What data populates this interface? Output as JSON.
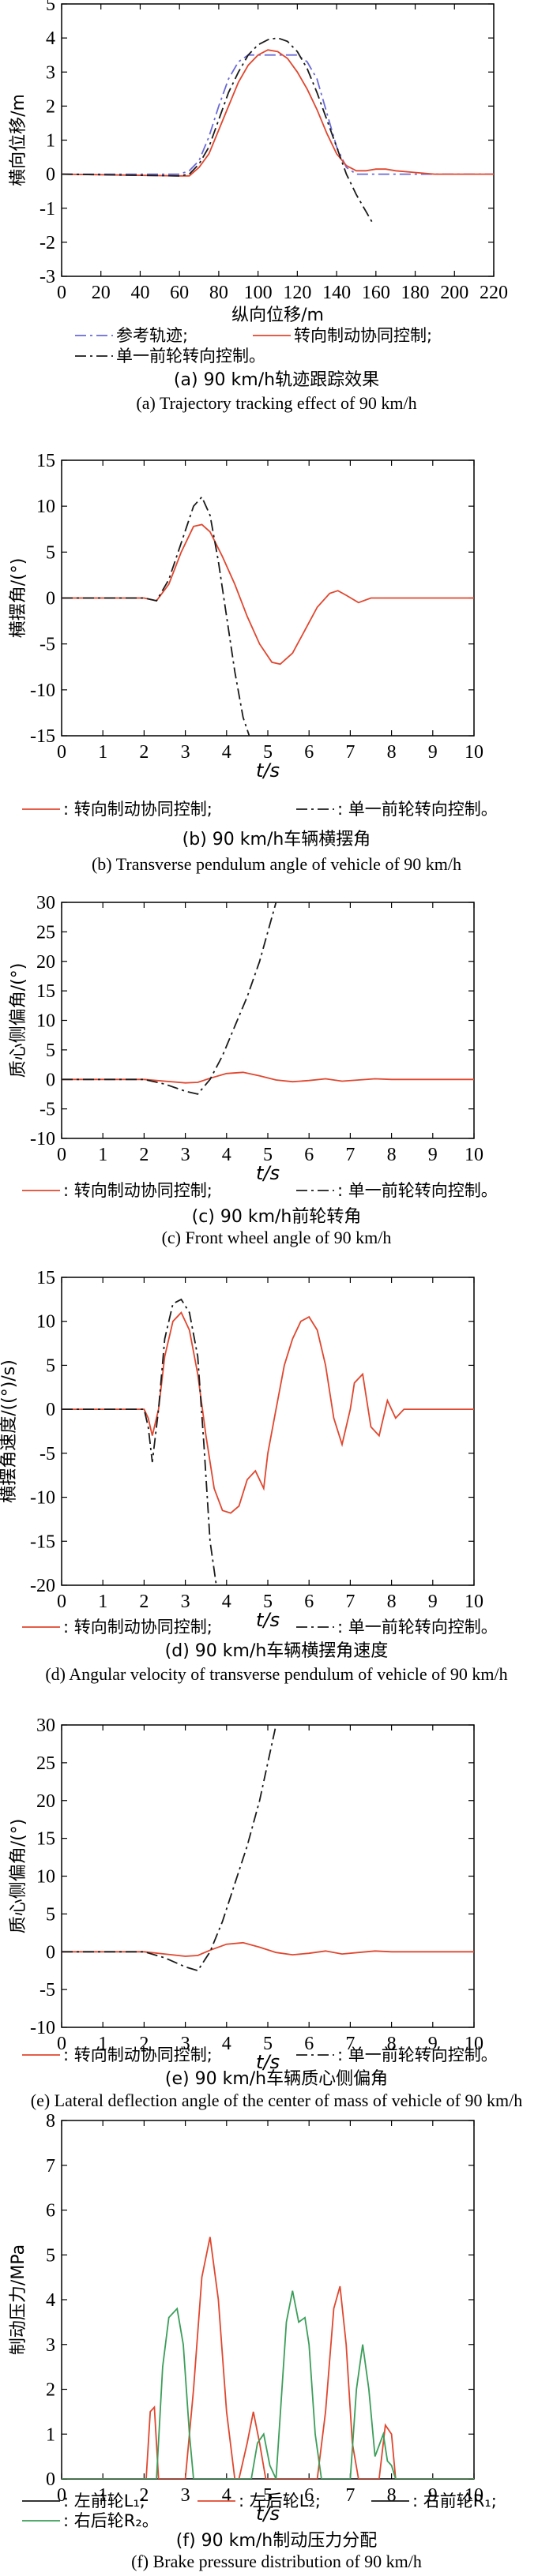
{
  "colors": {
    "red": "#e0472f",
    "black": "#1a1a1a",
    "green": "#3c9e5a",
    "grid": "#000000"
  },
  "chart_data": [
    {
      "id": "a",
      "type": "line",
      "ylabel": "横向位移/m",
      "xlabel": "纵向位移/m",
      "xlim": [
        0,
        220
      ],
      "ylim": [
        -3,
        5
      ],
      "xticks": [
        "0",
        "20",
        "40",
        "60",
        "80",
        "100",
        "120",
        "140",
        "160",
        "180",
        "200",
        "220"
      ],
      "yticks": [
        "-3",
        "-2",
        "-1",
        "0",
        "1",
        "2",
        "3",
        "4",
        "5"
      ],
      "legend": [
        {
          "label": "参考轨迹;",
          "style": "dashdot",
          "color": "#6a6ad8"
        },
        {
          "label": "转向制动协同控制;",
          "style": "solid",
          "color": "#e0472f"
        },
        {
          "label": "单一前轮转向控制。",
          "style": "dashdot",
          "color": "#1a1a1a"
        }
      ],
      "caption_cn": "(a) 90 km/h轨迹跟踪效果",
      "caption_en": "(a) Trajectory tracking effect of 90 km/h",
      "series": [
        {
          "name": "参考轨迹",
          "style": "dashdot",
          "color": "#6a6ad8",
          "x": [
            0,
            60,
            65,
            70,
            75,
            80,
            85,
            90,
            95,
            100,
            110,
            120,
            125,
            130,
            135,
            140,
            145,
            150,
            220
          ],
          "y": [
            0,
            0,
            0.1,
            0.4,
            1.1,
            2.0,
            2.8,
            3.3,
            3.5,
            3.5,
            3.5,
            3.5,
            3.3,
            2.8,
            1.8,
            0.8,
            0.2,
            0,
            0
          ]
        },
        {
          "name": "转向制动协同控制",
          "style": "solid",
          "color": "#e0472f",
          "x": [
            0,
            60,
            65,
            70,
            75,
            80,
            85,
            90,
            95,
            100,
            105,
            110,
            115,
            120,
            125,
            130,
            135,
            140,
            145,
            150,
            155,
            160,
            165,
            170,
            180,
            190,
            220
          ],
          "y": [
            0,
            -0.05,
            -0.05,
            0.2,
            0.6,
            1.3,
            2.0,
            2.7,
            3.2,
            3.5,
            3.65,
            3.6,
            3.4,
            3.0,
            2.5,
            1.9,
            1.2,
            0.6,
            0.25,
            0.1,
            0.1,
            0.15,
            0.15,
            0.1,
            0.05,
            0,
            0
          ]
        },
        {
          "name": "单一前轮转向控制",
          "style": "dashdot",
          "color": "#1a1a1a",
          "x": [
            0,
            60,
            65,
            70,
            75,
            80,
            85,
            90,
            95,
            100,
            105,
            110,
            115,
            120,
            125,
            130,
            135,
            140,
            145,
            150,
            155,
            158
          ],
          "y": [
            0,
            -0.05,
            0,
            0.3,
            0.8,
            1.6,
            2.4,
            3.0,
            3.5,
            3.8,
            3.95,
            4.0,
            3.9,
            3.6,
            3.1,
            2.4,
            1.6,
            0.8,
            0.0,
            -0.6,
            -1.1,
            -1.4
          ]
        }
      ]
    },
    {
      "id": "b",
      "type": "line",
      "ylabel": "横摆角/(°)",
      "xlabel": "t/s",
      "xlim": [
        0,
        10
      ],
      "ylim": [
        -15,
        15
      ],
      "xticks": [
        "0",
        "1",
        "2",
        "3",
        "4",
        "5",
        "6",
        "7",
        "8",
        "9",
        "10"
      ],
      "yticks": [
        "-15",
        "-10",
        "-5",
        "0",
        "5",
        "10",
        "15"
      ],
      "legend": [
        {
          "label": ": 转向制动协同控制;",
          "style": "solid",
          "color": "#e0472f"
        },
        {
          "label": ": 单一前轮转向控制。",
          "style": "dashdot",
          "color": "#1a1a1a"
        }
      ],
      "caption_cn": "(b) 90 km/h车辆横摆角",
      "caption_en": "(b) Transverse pendulum angle of vehicle of 90 km/h",
      "series": [
        {
          "name": "转向制动协同控制",
          "style": "solid",
          "color": "#e0472f",
          "x": [
            0,
            2,
            2.3,
            2.6,
            2.9,
            3.2,
            3.4,
            3.6,
            3.9,
            4.2,
            4.5,
            4.8,
            5.1,
            5.3,
            5.6,
            5.9,
            6.2,
            6.5,
            6.7,
            6.9,
            7.2,
            7.5,
            8,
            10
          ],
          "y": [
            0,
            0,
            -0.3,
            1.5,
            5,
            7.8,
            8.0,
            7.2,
            4.5,
            1.5,
            -2,
            -5,
            -7,
            -7.2,
            -6,
            -3.5,
            -1,
            0.5,
            0.8,
            0.3,
            -0.5,
            0,
            0,
            0
          ]
        },
        {
          "name": "单一前轮转向控制",
          "style": "dashdot",
          "color": "#1a1a1a",
          "x": [
            0,
            2,
            2.3,
            2.6,
            2.9,
            3.2,
            3.4,
            3.6,
            3.8,
            4.0,
            4.2,
            4.4,
            4.55
          ],
          "y": [
            0,
            0,
            -0.3,
            2,
            6,
            10,
            11,
            9,
            4,
            -2,
            -8,
            -13,
            -15
          ]
        }
      ]
    },
    {
      "id": "c",
      "type": "line",
      "ylabel": "质心侧偏角/(°)",
      "xlabel": "t/s",
      "xlim": [
        0,
        10
      ],
      "ylim": [
        -10,
        30
      ],
      "xticks": [
        "0",
        "1",
        "2",
        "3",
        "4",
        "5",
        "6",
        "7",
        "8",
        "9",
        "10"
      ],
      "yticks": [
        "-10",
        "-5",
        "0",
        "5",
        "10",
        "15",
        "20",
        "25",
        "30"
      ],
      "legend": [
        {
          "label": ": 转向制动协同控制;",
          "style": "solid",
          "color": "#e0472f"
        },
        {
          "label": ": 单一前轮转向控制。",
          "style": "dashdot",
          "color": "#1a1a1a"
        }
      ],
      "caption_cn": "(c) 90 km/h前轮转角",
      "caption_en": "(c) Front wheel angle of 90 km/h",
      "series": [
        {
          "name": "转向制动协同控制",
          "style": "solid",
          "color": "#e0472f",
          "x": [
            0,
            2,
            2.5,
            3.0,
            3.3,
            3.6,
            4.0,
            4.4,
            4.8,
            5.2,
            5.6,
            6.0,
            6.4,
            6.8,
            7.2,
            7.6,
            8,
            10
          ],
          "y": [
            0,
            0,
            -0.3,
            -0.6,
            -0.5,
            0.2,
            1.0,
            1.2,
            0.6,
            -0.1,
            -0.4,
            -0.2,
            0.1,
            -0.3,
            -0.1,
            0.1,
            0,
            0
          ]
        },
        {
          "name": "单一前轮转向控制",
          "style": "dashdot",
          "color": "#1a1a1a",
          "x": [
            0,
            2,
            2.5,
            3.0,
            3.3,
            3.6,
            3.9,
            4.2,
            4.5,
            4.8,
            5.0,
            5.2
          ],
          "y": [
            0,
            0,
            -0.8,
            -2.0,
            -2.5,
            0,
            4,
            9,
            14,
            20,
            25,
            30
          ]
        }
      ]
    },
    {
      "id": "d",
      "type": "line",
      "ylabel": "横摆角速度/((°)/s)",
      "xlabel": "t/s",
      "xlim": [
        0,
        10
      ],
      "ylim": [
        -20,
        15
      ],
      "xticks": [
        "0",
        "1",
        "2",
        "3",
        "4",
        "5",
        "6",
        "7",
        "8",
        "9",
        "10"
      ],
      "yticks": [
        "-20",
        "-15",
        "-10",
        "-5",
        "0",
        "5",
        "10",
        "15"
      ],
      "legend": [
        {
          "label": ": 转向制动协同控制;",
          "style": "solid",
          "color": "#e0472f"
        },
        {
          "label": ": 单一前轮转向控制。",
          "style": "dashdot",
          "color": "#1a1a1a"
        }
      ],
      "caption_cn": "(d) 90 km/h车辆横摆角速度",
      "caption_en": "(d) Angular velocity of transverse pendulum of vehicle of 90 km/h",
      "series": [
        {
          "name": "转向制动协同控制",
          "style": "solid",
          "color": "#e0472f",
          "x": [
            0,
            2,
            2.1,
            2.2,
            2.35,
            2.5,
            2.7,
            2.9,
            3.1,
            3.3,
            3.5,
            3.7,
            3.9,
            4.1,
            4.3,
            4.5,
            4.7,
            4.9,
            5.0,
            5.2,
            5.4,
            5.6,
            5.8,
            6.0,
            6.2,
            6.4,
            6.6,
            6.8,
            7.0,
            7.1,
            7.3,
            7.5,
            7.7,
            7.9,
            8.1,
            8.3,
            10
          ],
          "y": [
            0,
            0,
            -1,
            -3,
            0,
            6,
            10,
            11,
            9,
            4,
            -3,
            -9,
            -11.5,
            -11.8,
            -11,
            -8,
            -7,
            -9,
            -5,
            0,
            5,
            8,
            10,
            10.5,
            9,
            5,
            -1,
            -4,
            0,
            3,
            4,
            -2,
            -3,
            1,
            -1,
            0,
            0
          ]
        },
        {
          "name": "单一前轮转向控制",
          "style": "dashdot",
          "color": "#1a1a1a",
          "x": [
            0,
            2,
            2.1,
            2.2,
            2.35,
            2.5,
            2.7,
            2.9,
            3.1,
            3.3,
            3.45,
            3.6,
            3.75
          ],
          "y": [
            0,
            0,
            -2,
            -6,
            0,
            8,
            12,
            12.5,
            11,
            6,
            -4,
            -15,
            -20
          ]
        }
      ]
    },
    {
      "id": "e",
      "type": "line",
      "ylabel": "质心侧偏角/(°)",
      "xlabel": "t/s",
      "xlim": [
        0,
        10
      ],
      "ylim": [
        -10,
        30
      ],
      "xticks": [
        "0",
        "1",
        "2",
        "3",
        "4",
        "5",
        "6",
        "7",
        "8",
        "9",
        "10"
      ],
      "yticks": [
        "-10",
        "-5",
        "0",
        "5",
        "10",
        "15",
        "20",
        "25",
        "30"
      ],
      "legend": [
        {
          "label": ": 转向制动协同控制;",
          "style": "solid",
          "color": "#e0472f"
        },
        {
          "label": ": 单一前轮转向控制。",
          "style": "dashdot",
          "color": "#1a1a1a"
        }
      ],
      "caption_cn": "(e) 90 km/h车辆质心侧偏角",
      "caption_en": "(e) Lateral deflection angle of the center of mass of vehicle of 90 km/h",
      "series": [
        {
          "name": "转向制动协同控制",
          "style": "solid",
          "color": "#e0472f",
          "x": [
            0,
            2,
            2.5,
            3.0,
            3.3,
            3.6,
            4.0,
            4.4,
            4.8,
            5.2,
            5.6,
            6.0,
            6.4,
            6.8,
            7.2,
            7.6,
            8,
            10
          ],
          "y": [
            0,
            0,
            -0.3,
            -0.6,
            -0.5,
            0.2,
            1.0,
            1.2,
            0.6,
            -0.1,
            -0.4,
            -0.2,
            0.1,
            -0.3,
            -0.1,
            0.1,
            0,
            0
          ]
        },
        {
          "name": "单一前轮转向控制",
          "style": "dashdot",
          "color": "#1a1a1a",
          "x": [
            0,
            2,
            2.5,
            3.0,
            3.3,
            3.6,
            3.9,
            4.2,
            4.5,
            4.8,
            5.0,
            5.2
          ],
          "y": [
            0,
            0,
            -0.8,
            -2.0,
            -2.5,
            0,
            4,
            9,
            14,
            20,
            25,
            30
          ]
        }
      ]
    },
    {
      "id": "f",
      "type": "line",
      "ylabel": "制动压力/MPa",
      "xlabel": "t/s",
      "xlim": [
        0,
        10
      ],
      "ylim": [
        0,
        8
      ],
      "xticks": [
        "0",
        "1",
        "2",
        "3",
        "4",
        "5",
        "6",
        "7",
        "8",
        "9",
        "10"
      ],
      "yticks": [
        "0",
        "1",
        "2",
        "3",
        "4",
        "5",
        "6",
        "7",
        "8"
      ],
      "legend": [
        {
          "label": ": 左前轮L₁;",
          "style": "solid",
          "color": "#1a1a1a"
        },
        {
          "label": ": 左后轮L₂;",
          "style": "solid",
          "color": "#e0472f"
        },
        {
          "label": ": 右前轮R₁;",
          "style": "solid",
          "color": "#1a1a1a"
        },
        {
          "label": ": 右后轮R₂。",
          "style": "solid",
          "color": "#3c9e5a"
        }
      ],
      "caption_cn": "(f) 90 km/h制动压力分配",
      "caption_en": "(f) Brake pressure distribution of 90 km/h",
      "series": [
        {
          "name": "左后轮L₂",
          "style": "solid",
          "color": "#e0472f",
          "x": [
            0,
            2.05,
            2.15,
            2.25,
            2.35,
            3.0,
            3.2,
            3.4,
            3.6,
            3.8,
            4.0,
            4.2,
            4.3,
            4.5,
            4.65,
            4.8,
            4.95,
            5.1,
            5.3,
            6.2,
            6.4,
            6.6,
            6.75,
            6.9,
            7.05,
            7.2,
            7.7,
            7.85,
            8.0,
            8.1,
            10
          ],
          "y": [
            0,
            0,
            1.5,
            1.6,
            0,
            0,
            2.0,
            4.5,
            5.4,
            4.0,
            1.5,
            0,
            0,
            0.8,
            1.5,
            0.8,
            0,
            0,
            0,
            0,
            1.5,
            3.8,
            4.3,
            3.0,
            0.8,
            0,
            0,
            1.2,
            1.0,
            0,
            0
          ]
        },
        {
          "name": "右后轮R₂",
          "style": "solid",
          "color": "#3c9e5a",
          "x": [
            0,
            2.3,
            2.45,
            2.6,
            2.8,
            2.95,
            3.1,
            3.2,
            4.6,
            4.75,
            4.9,
            5.05,
            5.2,
            5.45,
            5.6,
            5.75,
            5.9,
            6.0,
            6.15,
            6.3,
            7.0,
            7.15,
            7.3,
            7.45,
            7.6,
            7.8,
            7.9,
            8.0,
            8.1,
            10
          ],
          "y": [
            0,
            0,
            2.5,
            3.6,
            3.8,
            3.0,
            1.0,
            0,
            0,
            0.8,
            1.0,
            0.3,
            0,
            3.5,
            4.2,
            3.5,
            3.6,
            3.0,
            1.0,
            0,
            0,
            2.0,
            3.0,
            2.0,
            0.5,
            1.0,
            0.4,
            0.3,
            0,
            0
          ]
        }
      ]
    }
  ]
}
